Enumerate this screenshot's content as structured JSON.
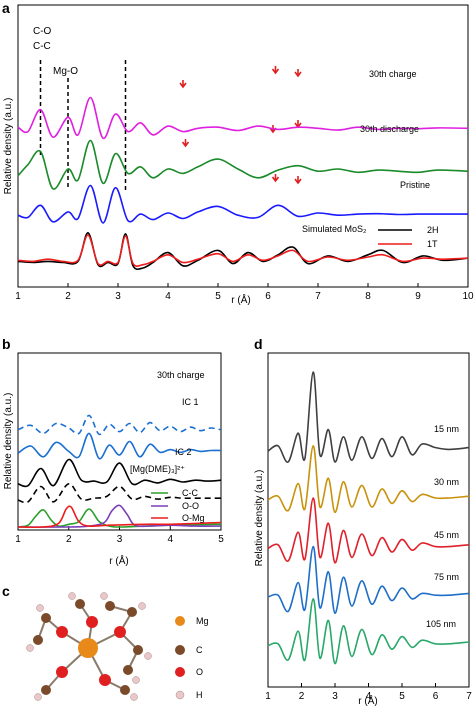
{
  "panels": {
    "a": "a",
    "b": "b",
    "c": "c",
    "d": "d"
  },
  "chart_data": [
    {
      "panel": "a",
      "type": "line",
      "xlabel": "r (Å)",
      "ylabel": "Relative density (a.u.)",
      "xlim": [
        1,
        10
      ],
      "xticks": [
        "1",
        "2",
        "3",
        "4",
        "5",
        "6",
        "7",
        "8",
        "9",
        "10"
      ],
      "annotations": [
        "C-O",
        "C-C",
        "Mg-O"
      ],
      "dashed_markers_x": [
        1.45,
        2.0,
        3.15
      ],
      "series": [
        {
          "name": "30th charge",
          "color": "#e020e0",
          "offset": 3,
          "x": [
            1.0,
            1.2,
            1.45,
            1.7,
            2.0,
            2.2,
            2.45,
            2.7,
            2.95,
            3.2,
            3.45,
            3.7,
            4.0,
            4.3,
            4.6,
            5.0,
            5.4,
            5.8,
            6.2,
            6.6,
            7.0,
            7.4,
            7.8,
            8.2,
            8.6,
            9.0,
            9.4,
            10.0
          ],
          "y": [
            0.55,
            0.35,
            1.35,
            0.1,
            1.0,
            0.2,
            1.9,
            0.05,
            1.15,
            0.35,
            0.75,
            0.2,
            0.6,
            0.35,
            0.5,
            0.55,
            0.4,
            0.6,
            0.45,
            0.55,
            0.5,
            0.42,
            0.55,
            0.45,
            0.5,
            0.48,
            0.52,
            0.5
          ]
        },
        {
          "name": "30th discharge",
          "color": "#1a8a2a",
          "offset": 2,
          "x": [
            1.0,
            1.2,
            1.45,
            1.7,
            2.0,
            2.2,
            2.45,
            2.7,
            2.95,
            3.2,
            3.45,
            3.7,
            4.0,
            4.3,
            4.6,
            5.0,
            5.4,
            5.8,
            6.2,
            6.6,
            7.0,
            7.4,
            7.8,
            8.2,
            8.6,
            9.0,
            9.4,
            10.0
          ],
          "y": [
            0.3,
            0.8,
            1.4,
            -0.3,
            0.6,
            0.1,
            1.9,
            -0.05,
            1.3,
            0.4,
            0.7,
            0.2,
            0.6,
            0.4,
            0.7,
            1.05,
            0.6,
            0.2,
            0.55,
            0.75,
            0.5,
            0.6,
            0.45,
            0.55,
            0.5,
            0.45,
            0.55,
            0.5
          ]
        },
        {
          "name": "Pristine",
          "color": "#1a1aff",
          "offset": 1,
          "x": [
            1.0,
            1.2,
            1.45,
            1.7,
            2.0,
            2.2,
            2.45,
            2.7,
            2.95,
            3.2,
            3.45,
            3.7,
            4.0,
            4.3,
            4.6,
            5.0,
            5.4,
            5.8,
            6.2,
            6.6,
            7.0,
            7.4,
            7.8,
            8.2,
            8.6,
            9.0,
            9.4,
            10.0
          ],
          "y": [
            0.45,
            0.35,
            0.9,
            0.15,
            0.6,
            0.3,
            1.8,
            0.1,
            1.7,
            0.2,
            0.5,
            0.25,
            0.55,
            0.3,
            0.6,
            0.85,
            0.45,
            0.35,
            0.9,
            0.4,
            0.55,
            0.45,
            0.5,
            0.52,
            0.48,
            0.5,
            0.5,
            0.5
          ]
        },
        {
          "name": "2H",
          "color": "#000000",
          "offset": 0,
          "x": [
            1.0,
            1.3,
            1.6,
            1.9,
            2.2,
            2.4,
            2.6,
            2.8,
            3.0,
            3.15,
            3.3,
            3.5,
            3.7,
            4.0,
            4.3,
            4.6,
            5.0,
            5.3,
            5.6,
            5.9,
            6.2,
            6.5,
            6.8,
            7.2,
            7.6,
            8.0,
            8.3,
            8.7,
            9.1,
            9.5,
            10.0
          ],
          "y": [
            0.3,
            0.25,
            0.3,
            0.25,
            0.3,
            1.6,
            0.15,
            0.25,
            0.2,
            1.55,
            0.1,
            0.0,
            0.25,
            0.7,
            0.1,
            0.35,
            0.8,
            0.2,
            0.7,
            0.3,
            0.6,
            0.95,
            0.2,
            0.55,
            0.3,
            0.6,
            0.8,
            0.25,
            0.55,
            0.35,
            0.45
          ]
        },
        {
          "name": "1T",
          "color": "#ee1c1c",
          "offset": 0,
          "x": [
            1.0,
            1.3,
            1.6,
            1.9,
            2.2,
            2.4,
            2.6,
            2.8,
            3.0,
            3.15,
            3.3,
            3.5,
            3.7,
            4.0,
            4.3,
            4.6,
            5.0,
            5.3,
            5.6,
            5.9,
            6.2,
            6.5,
            6.8,
            7.2,
            7.6,
            8.0,
            8.3,
            8.7,
            9.1,
            9.5,
            10.0
          ],
          "y": [
            0.35,
            0.3,
            0.4,
            0.3,
            0.35,
            1.5,
            0.2,
            0.3,
            0.25,
            1.45,
            0.2,
            0.15,
            0.3,
            0.6,
            0.25,
            0.4,
            0.65,
            0.3,
            0.6,
            0.35,
            0.55,
            0.8,
            0.3,
            0.5,
            0.35,
            0.5,
            0.6,
            0.3,
            0.45,
            0.4,
            0.45
          ]
        }
      ],
      "series_labels": {
        "charge": "30th charge",
        "discharge": "30th discharge",
        "pristine": "Pristine",
        "sim": "Simulated MoS₂"
      },
      "legend": [
        "2H",
        "1T"
      ]
    },
    {
      "panel": "b",
      "type": "line",
      "xlabel": "r (Å)",
      "ylabel": "Relative density (a.u.)",
      "xlim": [
        1,
        5
      ],
      "xticks": [
        "1",
        "2",
        "3",
        "4",
        "5"
      ],
      "series": [
        {
          "name": "30th charge",
          "color": "#1a6fd0",
          "dashed": true,
          "offset": 5.2,
          "x": [
            1.0,
            1.25,
            1.5,
            1.75,
            2.0,
            2.2,
            2.4,
            2.6,
            2.8,
            3.0,
            3.2,
            3.4,
            3.6,
            3.8,
            4.0,
            4.2,
            4.4,
            4.6,
            4.8,
            5.0
          ],
          "y": [
            0.2,
            0.45,
            0.0,
            0.55,
            0.3,
            0.0,
            1.0,
            -0.05,
            0.5,
            0.1,
            0.55,
            0.05,
            0.6,
            0.15,
            0.4,
            0.1,
            0.35,
            0.15,
            0.3,
            0.2
          ]
        },
        {
          "name": "IC 1",
          "color": "#1a6fd0",
          "dashed": false,
          "offset": 4.0,
          "x": [
            1.0,
            1.25,
            1.5,
            1.75,
            2.0,
            2.2,
            2.4,
            2.6,
            2.8,
            3.0,
            3.2,
            3.4,
            3.6,
            3.8,
            4.0,
            4.2,
            4.4,
            4.6,
            4.8,
            5.0
          ],
          "y": [
            0.1,
            0.5,
            -0.1,
            0.7,
            0.2,
            -0.1,
            1.2,
            -0.2,
            0.55,
            0.0,
            0.75,
            -0.1,
            0.6,
            0.15,
            0.3,
            0.15,
            0.3,
            0.2,
            0.25,
            0.25
          ]
        },
        {
          "name": "IC 2",
          "color": "#000000",
          "dashed": false,
          "offset": 2.3,
          "x": [
            1.0,
            1.2,
            1.45,
            1.7,
            2.0,
            2.25,
            2.5,
            2.75,
            3.0,
            3.25,
            3.5,
            3.75,
            4.0,
            4.25,
            4.5,
            4.75,
            5.0
          ],
          "y": [
            0.1,
            0.0,
            0.95,
            0.0,
            1.45,
            0.3,
            0.25,
            0.2,
            1.25,
            0.1,
            0.3,
            0.15,
            0.35,
            0.2,
            0.3,
            0.25,
            0.3
          ]
        },
        {
          "name": "[Mg(DME)₃]²⁺",
          "color": "#000000",
          "dashed": true,
          "offset": 1.4,
          "x": [
            1.0,
            1.2,
            1.45,
            1.7,
            2.0,
            2.25,
            2.5,
            2.75,
            3.0,
            3.25,
            3.5,
            3.75,
            4.0,
            4.25,
            4.5,
            4.75,
            5.0
          ],
          "y": [
            0.1,
            0.0,
            0.85,
            0.0,
            1.0,
            0.15,
            0.2,
            0.3,
            0.85,
            0.15,
            0.3,
            0.15,
            0.25,
            0.2,
            0.2,
            0.2,
            0.2
          ]
        },
        {
          "name": "C-C",
          "color": "#2ca02c",
          "offset": 0,
          "x": [
            1.0,
            1.2,
            1.35,
            1.5,
            1.65,
            1.8,
            2.0,
            2.2,
            2.4,
            2.6,
            2.8,
            3.0,
            3.5,
            4.0,
            5.0
          ],
          "y": [
            0.0,
            0.1,
            0.6,
            0.95,
            0.4,
            0.05,
            0.15,
            0.3,
            1.0,
            0.3,
            0.05,
            0.0,
            0.05,
            0.1,
            0.15
          ]
        },
        {
          "name": "O-O",
          "color": "#7b3fb8",
          "offset": 0,
          "x": [
            1.0,
            2.0,
            2.4,
            2.7,
            2.85,
            3.0,
            3.15,
            3.3,
            3.6,
            4.0,
            4.5,
            5.0
          ],
          "y": [
            0.0,
            0.0,
            0.05,
            0.25,
            0.9,
            1.2,
            0.7,
            0.1,
            0.05,
            0.1,
            0.05,
            0.05
          ]
        },
        {
          "name": "O-Mg",
          "color": "#ee1c1c",
          "offset": 0,
          "x": [
            1.0,
            1.5,
            1.8,
            1.95,
            2.05,
            2.2,
            2.4,
            2.8,
            3.5,
            4.0,
            4.5,
            5.0
          ],
          "y": [
            0.0,
            0.0,
            0.2,
            1.0,
            1.1,
            0.3,
            0.05,
            0.1,
            0.15,
            0.15,
            0.2,
            0.25
          ]
        }
      ]
    },
    {
      "panel": "d",
      "type": "line",
      "xlabel": "r (Å)",
      "ylabel": "Relative density (a.u.)",
      "xlim": [
        1,
        7
      ],
      "xticks": [
        "1",
        "2",
        "3",
        "4",
        "5",
        "6",
        "7"
      ],
      "series": [
        {
          "name": "15 nm",
          "color": "#404040",
          "offset": 4,
          "x": [
            1.0,
            1.3,
            1.6,
            1.9,
            2.1,
            2.35,
            2.55,
            2.8,
            3.0,
            3.25,
            3.5,
            3.8,
            4.1,
            4.4,
            4.7,
            5.0,
            5.3,
            5.6,
            6.0,
            6.4,
            7.0
          ],
          "y": [
            0.4,
            0.55,
            0.1,
            0.9,
            0.2,
            2.6,
            0.3,
            1.0,
            0.1,
            0.8,
            0.15,
            0.8,
            0.2,
            0.75,
            0.25,
            0.8,
            0.3,
            0.6,
            0.5,
            0.45,
            0.5
          ]
        },
        {
          "name": "30 nm",
          "color": "#c9920c",
          "offset": 3,
          "x": [
            1.0,
            1.3,
            1.6,
            1.9,
            2.1,
            2.35,
            2.55,
            2.8,
            3.0,
            3.25,
            3.5,
            3.8,
            4.1,
            4.4,
            4.7,
            5.0,
            5.3,
            5.6,
            6.0,
            6.4,
            7.0
          ],
          "y": [
            0.4,
            0.5,
            0.1,
            0.85,
            0.15,
            1.9,
            0.2,
            1.0,
            0.05,
            0.9,
            0.2,
            0.8,
            0.2,
            0.7,
            0.3,
            0.65,
            0.35,
            0.55,
            0.45,
            0.45,
            0.5
          ]
        },
        {
          "name": "45 nm",
          "color": "#e0202a",
          "offset": 2,
          "x": [
            1.0,
            1.3,
            1.6,
            1.9,
            2.1,
            2.35,
            2.55,
            2.8,
            3.0,
            3.25,
            3.5,
            3.8,
            4.1,
            4.4,
            4.7,
            5.0,
            5.3,
            5.6,
            6.0,
            6.4,
            7.0
          ],
          "y": [
            0.4,
            0.5,
            0.05,
            0.85,
            0.1,
            1.8,
            0.15,
            1.1,
            0.0,
            0.9,
            0.15,
            0.8,
            0.2,
            0.7,
            0.3,
            0.65,
            0.35,
            0.55,
            0.45,
            0.45,
            0.5
          ]
        },
        {
          "name": "75 nm",
          "color": "#1f6fc8",
          "offset": 1,
          "x": [
            1.0,
            1.3,
            1.6,
            1.9,
            2.1,
            2.35,
            2.55,
            2.8,
            3.0,
            3.25,
            3.5,
            3.8,
            4.1,
            4.4,
            4.7,
            5.0,
            5.3,
            5.6,
            6.0,
            6.4,
            7.0
          ],
          "y": [
            0.4,
            0.45,
            0.0,
            0.8,
            0.05,
            1.8,
            0.1,
            1.1,
            -0.05,
            0.95,
            0.15,
            0.85,
            0.2,
            0.7,
            0.3,
            0.65,
            0.35,
            0.5,
            0.45,
            0.45,
            0.5
          ]
        },
        {
          "name": "105 nm",
          "color": "#2aa86a",
          "offset": 0,
          "x": [
            1.0,
            1.3,
            1.6,
            1.9,
            2.1,
            2.35,
            2.55,
            2.8,
            3.0,
            3.25,
            3.5,
            3.8,
            4.1,
            4.4,
            4.7,
            5.0,
            5.3,
            5.6,
            6.0,
            6.4,
            7.0
          ],
          "y": [
            0.4,
            0.45,
            0.0,
            0.8,
            0.0,
            1.7,
            0.05,
            1.1,
            -0.1,
            0.95,
            0.1,
            0.85,
            0.15,
            0.7,
            0.3,
            0.65,
            0.35,
            0.55,
            0.45,
            0.45,
            0.5
          ]
        }
      ]
    }
  ],
  "panel_c": {
    "legend": [
      {
        "label": "Mg",
        "color": "#e88a1a"
      },
      {
        "label": "C",
        "color": "#7a4a2a"
      },
      {
        "label": "O",
        "color": "#e02020"
      },
      {
        "label": "H",
        "color": "#e8c8c8"
      }
    ]
  }
}
